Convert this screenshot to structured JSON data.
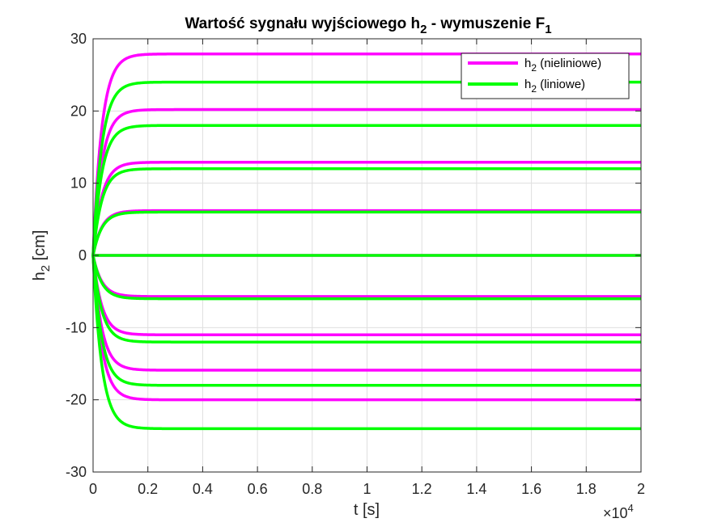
{
  "chart_data": {
    "type": "line",
    "title": {
      "main": "Wartość sygnału wyjściowego h",
      "sub1": "2",
      "mid": " - wymuszenie F",
      "sub2": "1"
    },
    "xlabel": "t [s]",
    "ylabel": {
      "main": "h",
      "sub": "2",
      "rest": " [cm]"
    },
    "x_exponent": {
      "prefix": "×10",
      "power": "4"
    },
    "xlim": [
      0,
      20000
    ],
    "ylim": [
      -30,
      30
    ],
    "xticks": [
      0,
      2000,
      4000,
      6000,
      8000,
      10000,
      12000,
      14000,
      16000,
      18000,
      20000
    ],
    "xtick_labels": [
      "0",
      "0.2",
      "0.4",
      "0.6",
      "0.8",
      "1",
      "1.2",
      "1.4",
      "1.6",
      "1.8",
      "2"
    ],
    "yticks": [
      -30,
      -20,
      -10,
      0,
      10,
      20,
      30
    ],
    "ytick_labels": [
      "-30",
      "-20",
      "-10",
      "0",
      "10",
      "20",
      "30"
    ],
    "grid": true,
    "legend_position": "top-right",
    "time_constant_s": 320,
    "series": [
      {
        "name": {
          "main": "h",
          "sub": "2",
          "rest": " (nieliniowe)"
        },
        "color": "#ff00ff",
        "steady_values": [
          27.9,
          20.2,
          12.9,
          6.2,
          0,
          -5.7,
          -11.0,
          -15.9,
          -20.0
        ]
      },
      {
        "name": {
          "main": "h",
          "sub": "2",
          "rest": " (liniowe)"
        },
        "color": "#00ff00",
        "steady_values": [
          24.0,
          18.0,
          12.0,
          6.0,
          0,
          -6.0,
          -12.0,
          -18.0,
          -24.0
        ]
      }
    ]
  }
}
